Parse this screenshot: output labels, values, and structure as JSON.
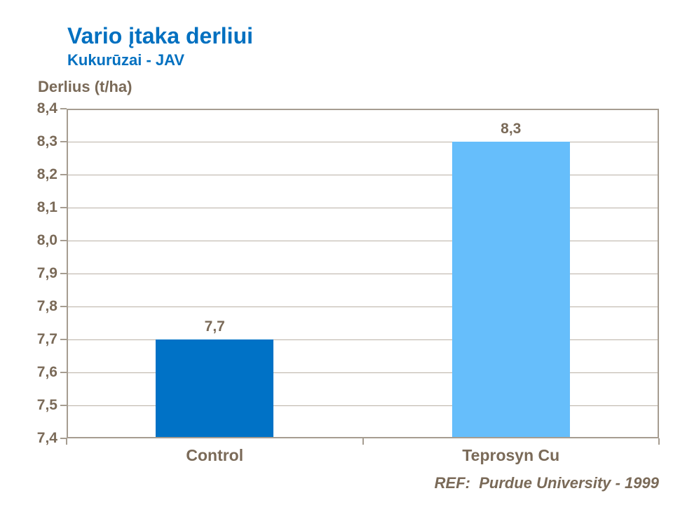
{
  "header": {
    "title": "Vario įtaka derliui",
    "subtitle": "Kukurūzai - JAV"
  },
  "footer": {
    "ref": "REF:  Purdue University - 1999"
  },
  "colors": {
    "title_blue": "#0070C0",
    "text_brown": "#7A6A58",
    "axis_border": "#A69D91",
    "gridline": "#BAB1A6",
    "bar_control": "#0072C6",
    "bar_teprosyn": "#66BEFB"
  },
  "chart_data": {
    "type": "bar",
    "title": "Vario įtaka derliui",
    "subtitle": "Kukurūzai - JAV",
    "ylabel": "Derlius (t/ha)",
    "categories": [
      "Control",
      "Teprosyn Cu"
    ],
    "values": [
      7.7,
      8.3
    ],
    "value_labels": [
      "7,7",
      "8,3"
    ],
    "bar_colors": [
      "#0072C6",
      "#66BEFB"
    ],
    "ylim": [
      7.4,
      8.4
    ],
    "ytick_step": 0.1,
    "ytick_labels_top_to_bottom": [
      "8,4",
      "8,3",
      "8,2",
      "8,1",
      "8,0",
      "7,9",
      "7,8",
      "7,7",
      "7,6",
      "7,5",
      "7,4"
    ],
    "grid": true,
    "legend": false,
    "annotation": "REF:  Purdue University - 1999"
  }
}
